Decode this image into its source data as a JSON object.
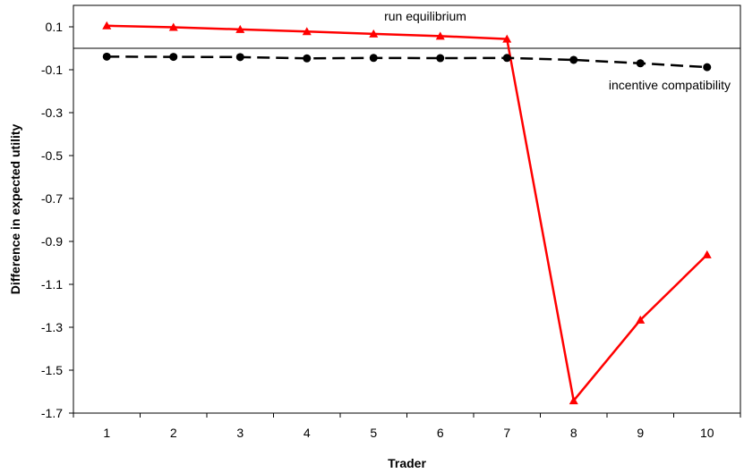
{
  "chart_data": {
    "type": "line",
    "title": "",
    "xlabel": "Trader",
    "ylabel": "Difference in expected utility",
    "x": [
      1,
      2,
      3,
      4,
      5,
      6,
      7,
      8,
      9,
      10
    ],
    "xlim": [
      0.5,
      10.5
    ],
    "ylim": [
      -1.7,
      0.2
    ],
    "yticks": [
      0.1,
      -0.1,
      -0.3,
      -0.5,
      -0.7,
      -0.9,
      -1.1,
      -1.3,
      -1.5,
      -1.7
    ],
    "ytick_labels": [
      "0.1",
      "-0.1",
      "-0.3",
      "-0.5",
      "-0.7",
      "-0.9",
      "-1.1",
      "-1.3",
      "-1.5",
      "-1.7"
    ],
    "xtick_labels": [
      "1",
      "2",
      "3",
      "4",
      "5",
      "6",
      "7",
      "8",
      "9",
      "10"
    ],
    "zero_line": true,
    "grid": false,
    "series": [
      {
        "name": "run equilibrium",
        "color": "#ff0000",
        "marker": "triangle",
        "line_style": "solid",
        "values": [
          0.105,
          0.098,
          0.088,
          0.078,
          0.067,
          0.057,
          0.043,
          -1.642,
          -1.266,
          -0.962
        ]
      },
      {
        "name": "incentive compatibility",
        "color": "#000000",
        "marker": "circle",
        "line_style": "dashed",
        "values": [
          -0.039,
          -0.04,
          -0.041,
          -0.047,
          -0.045,
          -0.046,
          -0.045,
          -0.054,
          -0.07,
          -0.088
        ]
      }
    ],
    "annotations": [
      {
        "text": "run equilibrium",
        "series": 0
      },
      {
        "text": "incentive compatibility",
        "series": 1
      }
    ]
  }
}
